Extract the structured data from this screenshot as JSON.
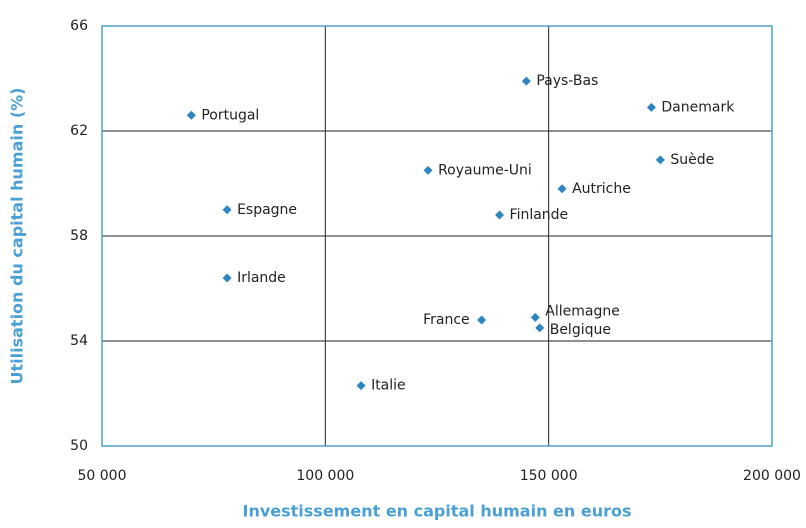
{
  "chart_data": {
    "type": "scatter",
    "x_label": "Investissement en capital humain en euros",
    "y_label": "Utilisation du capital humain (%)",
    "labels": [
      "Portugal",
      "Espagne",
      "Irlande",
      "Italie",
      "Royaume-Uni",
      "Finlande",
      "France",
      "Pays-Bas",
      "Allemagne",
      "Belgique",
      "Autriche",
      "Danemark",
      "Suède"
    ],
    "x": [
      70000,
      78000,
      78000,
      108000,
      123000,
      139000,
      135000,
      145000,
      147000,
      148000,
      153000,
      173000,
      175000
    ],
    "y": [
      62.6,
      59.0,
      56.4,
      52.3,
      60.5,
      58.8,
      54.8,
      63.9,
      54.9,
      54.5,
      59.8,
      62.9,
      60.9
    ],
    "color": "#2e86c1",
    "xlim": [
      50000,
      200000
    ],
    "xticks": [
      {
        "value": 50000,
        "label": "50 000"
      },
      {
        "value": 100000,
        "label": "100 000"
      },
      {
        "value": 150000,
        "label": "150 000"
      },
      {
        "value": 200000,
        "label": "200 000"
      }
    ],
    "ylim": [
      50,
      66
    ],
    "yticks": [
      50,
      54,
      58,
      62,
      66
    ],
    "grid": true
  }
}
